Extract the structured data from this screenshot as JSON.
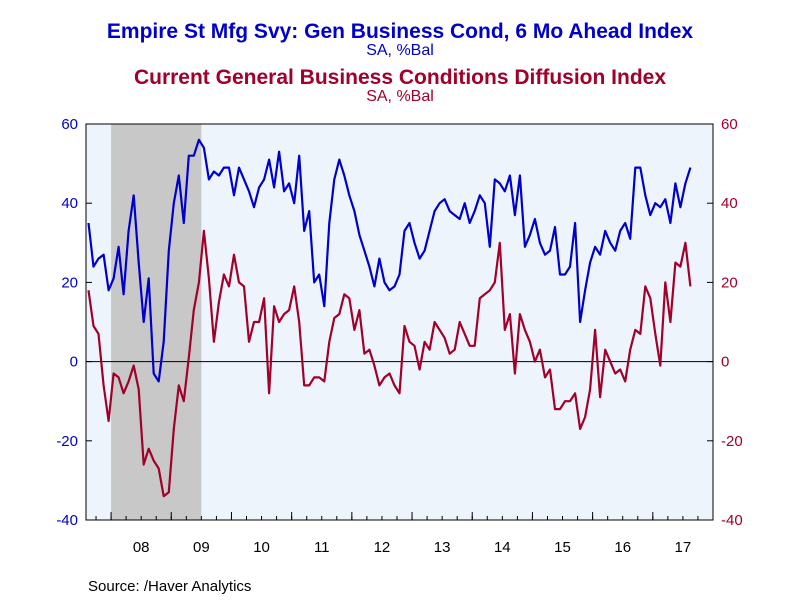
{
  "chart_data": {
    "type": "line",
    "titles": [
      {
        "text": "Empire St Mfg Svy: Gen Business Cond, 6 Mo Ahead Index",
        "subtitle": "SA, %Bal",
        "color": "#0000cc"
      },
      {
        "text": "Current General Business Conditions Diffusion Index",
        "subtitle": "SA, %Bal",
        "color": "#a0002a"
      }
    ],
    "ylim": [
      -40,
      60
    ],
    "yticks": [
      "-40",
      "-20",
      "0",
      "20",
      "40",
      "60"
    ],
    "y_right_ticks": [
      "-40",
      "-20",
      "0",
      "20",
      "40",
      "60"
    ],
    "x_range": [
      "2007-08",
      "2017-12"
    ],
    "x_tick_labels": [
      "08",
      "09",
      "10",
      "11",
      "12",
      "13",
      "14",
      "15",
      "16",
      "17"
    ],
    "recession_shading": {
      "start": "2008-01",
      "end": "2009-06",
      "color": "#c8c8c8"
    },
    "plot_background": "#eef4fc",
    "zero_line": true,
    "series": [
      {
        "key": "six_month_ahead",
        "color": "#0000cc",
        "start": "2007-08",
        "values": [
          35,
          24,
          26,
          27,
          18,
          21,
          29,
          17,
          33,
          42,
          25,
          10,
          21,
          -3,
          -5,
          5,
          28,
          40,
          47,
          35,
          52,
          52,
          56,
          54,
          46,
          48,
          47,
          49,
          49,
          42,
          49,
          46,
          43,
          39,
          44,
          46,
          51,
          44,
          53,
          43,
          45,
          40,
          52,
          33,
          38,
          20,
          22,
          14,
          35,
          46,
          51,
          47,
          42,
          38,
          32,
          28,
          24,
          19,
          26,
          20,
          18,
          19,
          22,
          33,
          35,
          30,
          26,
          28,
          33,
          38,
          40,
          41,
          38,
          37,
          36,
          40,
          35,
          38,
          42,
          40,
          29,
          46,
          45,
          43,
          47,
          37,
          47,
          29,
          32,
          36,
          30,
          27,
          28,
          34,
          22,
          22,
          24,
          35,
          10,
          18,
          25,
          29,
          27,
          33,
          30,
          28,
          33,
          35,
          31,
          49,
          49,
          42,
          37,
          40,
          39,
          41,
          35,
          45,
          39,
          45,
          49
        ]
      },
      {
        "key": "current_conditions",
        "color": "#a0002a",
        "start": "2007-08",
        "values": [
          18,
          9,
          7,
          -6,
          -15,
          -3,
          -4,
          -8,
          -5,
          -1,
          -7,
          -26,
          -22,
          -25,
          -27,
          -34,
          -33,
          -17,
          -6,
          -10,
          1,
          13,
          20,
          33,
          21,
          5,
          15,
          22,
          19,
          27,
          20,
          19,
          5,
          10,
          10,
          16,
          -8,
          14,
          10,
          12,
          13,
          19,
          10,
          -6,
          -6,
          -4,
          -4,
          -5,
          5,
          11,
          12,
          17,
          16,
          8,
          13,
          2,
          3,
          -1,
          -6,
          -4,
          -3,
          -6,
          -8,
          9,
          5,
          4,
          -2,
          5,
          3,
          10,
          8,
          6,
          2,
          3,
          10,
          7,
          4,
          4,
          16,
          17,
          18,
          20,
          30,
          8,
          12,
          -3,
          12,
          8,
          5,
          0,
          3,
          -4,
          -2,
          -12,
          -12,
          -10,
          -10,
          -8,
          -17,
          -14,
          -7,
          8,
          -9,
          3,
          0,
          -3,
          -2,
          -5,
          3,
          8,
          7,
          19,
          16,
          7,
          -1,
          20,
          10,
          25,
          24,
          30,
          19
        ]
      }
    ]
  },
  "source": "Source:  /Haver Analytics"
}
